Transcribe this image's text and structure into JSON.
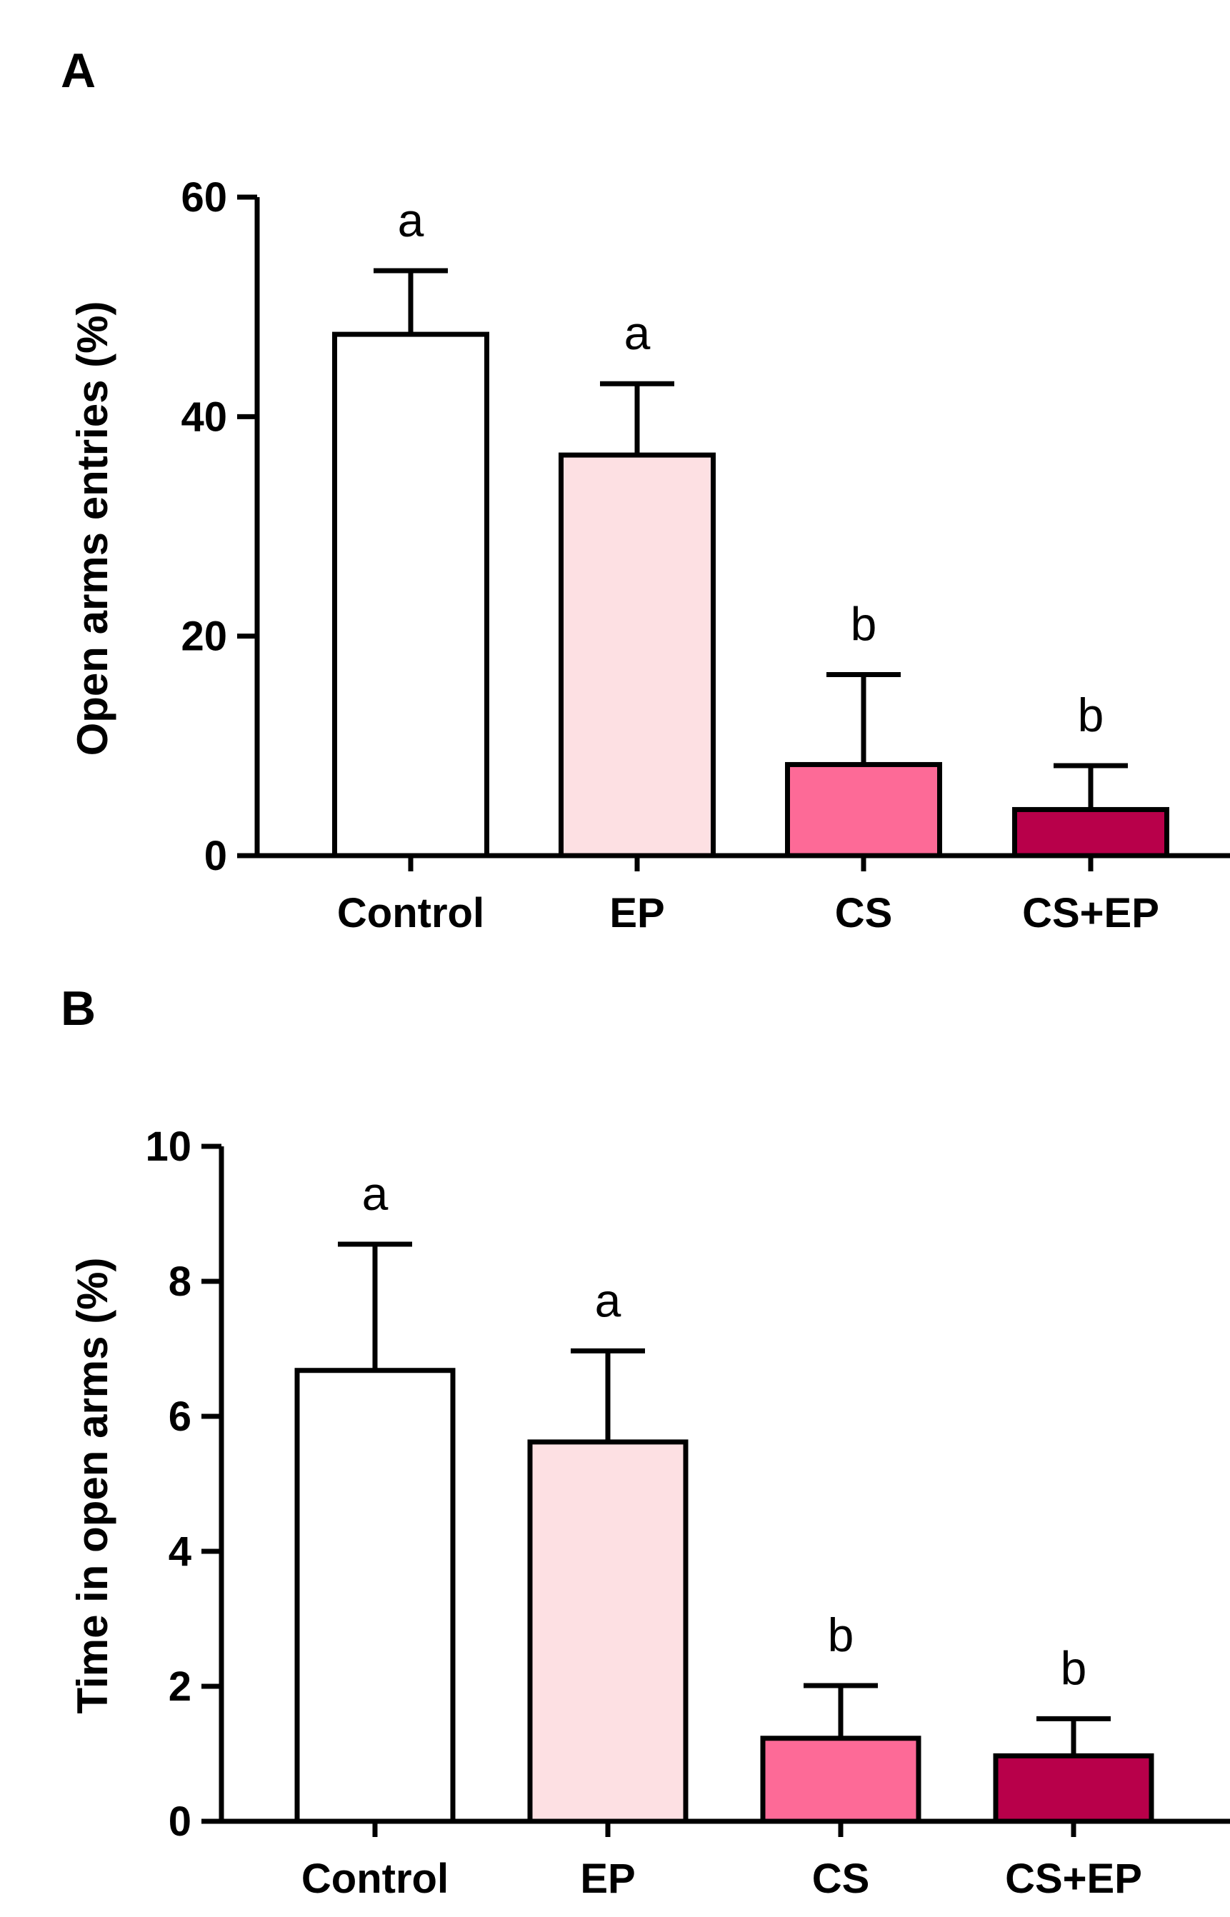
{
  "chart_data": [
    {
      "panel": "A",
      "type": "bar",
      "title": "",
      "xlabel": "",
      "ylabel": "Open arms entries (%)",
      "ylim": [
        0,
        60
      ],
      "yticks": [
        0,
        20,
        40,
        60
      ],
      "categories": [
        "Control",
        "EP",
        "CS",
        "CS+EP"
      ],
      "values": [
        47.5,
        36.5,
        8.3,
        4.2
      ],
      "errors": [
        5.8,
        6.5,
        8.2,
        4.0
      ],
      "significance": [
        "a",
        "a",
        "b",
        "b"
      ],
      "colors": [
        "#ffffff",
        "#fde0e3",
        "#fd6a97",
        "#b8004a"
      ],
      "grid": false
    },
    {
      "panel": "B",
      "type": "bar",
      "title": "",
      "xlabel": "",
      "ylabel": "Time in open arms (%)",
      "ylim": [
        0,
        10
      ],
      "yticks": [
        0,
        2,
        4,
        6,
        8,
        10
      ],
      "categories": [
        "Control",
        "EP",
        "CS",
        "CS+EP"
      ],
      "values": [
        6.68,
        5.62,
        1.23,
        0.97
      ],
      "errors": [
        1.87,
        1.35,
        0.78,
        0.55
      ],
      "significance": [
        "a",
        "a",
        "b",
        "b"
      ],
      "colors": [
        "#ffffff",
        "#fde0e3",
        "#fd6a97",
        "#b8004a"
      ],
      "grid": false
    }
  ]
}
